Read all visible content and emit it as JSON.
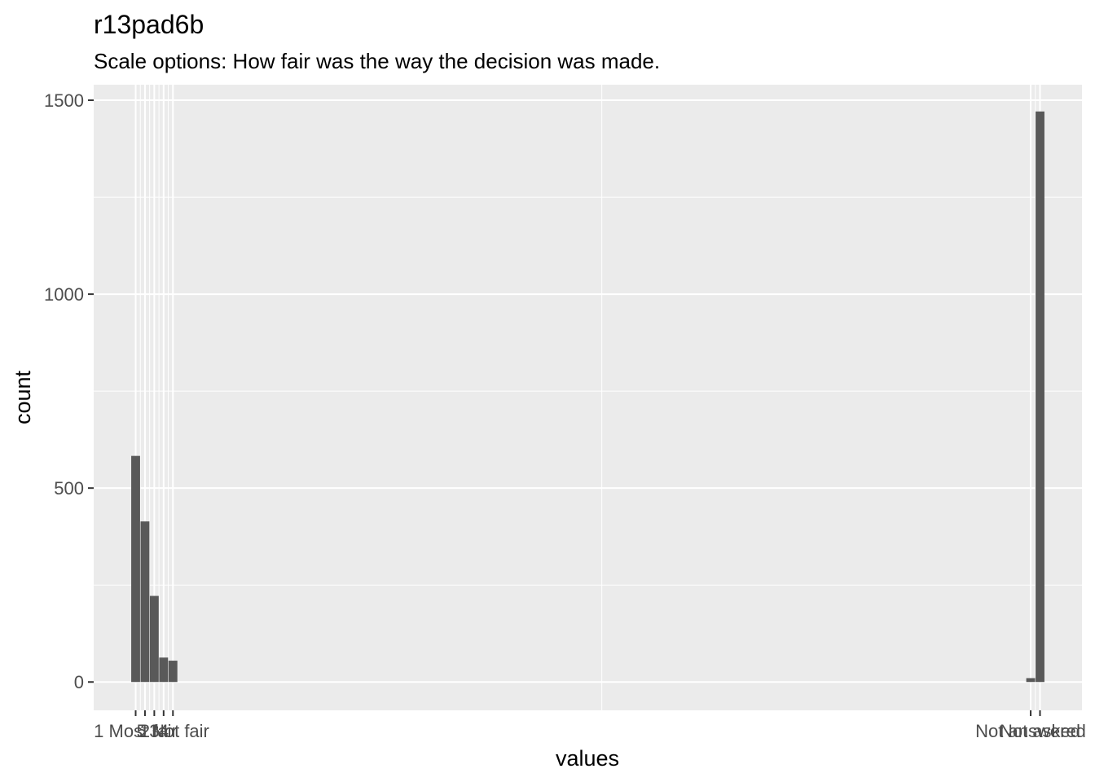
{
  "chart_data": {
    "type": "bar",
    "title": "r13pad6b",
    "subtitle": "Scale options: How fair was the way the decision was made.",
    "xlabel": "values",
    "ylabel": "count",
    "ylim": [
      -73,
      1540
    ],
    "yticks": [
      0,
      500,
      1000,
      1500
    ],
    "grid": true,
    "categories": [
      "1 Most fair",
      "2",
      "3",
      "4",
      "5 Not fair",
      "Not answered",
      "Not asked"
    ],
    "x": [
      1,
      2,
      3,
      4,
      5,
      97,
      98
    ],
    "xlim": [
      -3.5,
      102.5
    ],
    "values": [
      583,
      414,
      222,
      63,
      55,
      10,
      1471
    ],
    "bar_color": "#595959",
    "panel_color": "#ebebeb",
    "grid_color": "#ffffff"
  }
}
